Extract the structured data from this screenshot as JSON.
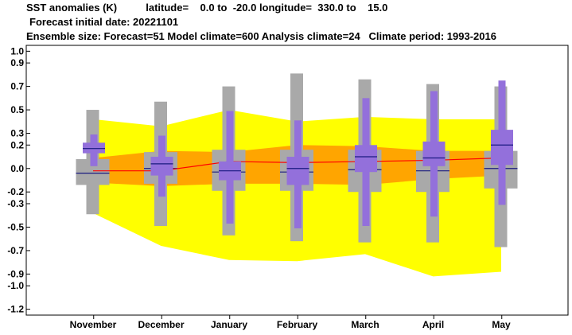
{
  "header": {
    "line1": "SST anomalies (K)          latitude=    0.0 to  -20.0 longitude=  330.0 to    15.0",
    "line2": "Forecast initial date: 20221101",
    "line3": "Ensemble size: Forecast=51 Model climate=600 Analysis climate=24   Climate period: 1993-2016"
  },
  "chart_data": {
    "type": "box",
    "title": "SST anomalies (K)",
    "categories": [
      "November",
      "December",
      "January",
      "February",
      "March",
      "April",
      "May"
    ],
    "yticks": [
      "1.0",
      "0.9",
      "0.7",
      "0.5",
      "0.3",
      "0.2",
      "0.0",
      "-0.2",
      "-0.3",
      "-0.5",
      "-0.7",
      "-0.9",
      "-1.0",
      "-1.2"
    ],
    "climate_yellow_upper": [
      0.42,
      0.36,
      0.5,
      0.4,
      0.44,
      0.42,
      0.42
    ],
    "climate_yellow_lower": [
      -0.38,
      -0.66,
      -0.78,
      -0.79,
      -0.73,
      -0.92,
      -0.88
    ],
    "climate_orange_upper": [
      0.09,
      0.15,
      0.14,
      0.2,
      0.19,
      0.15,
      0.15
    ],
    "climate_orange_lower": [
      -0.12,
      -0.15,
      -0.13,
      -0.13,
      -0.14,
      -0.09,
      -0.06
    ],
    "model_climate": [
      {
        "whisker_low": -0.39,
        "whisker_high": 0.5,
        "box_low": -0.14,
        "box_high": 0.08,
        "median": -0.04
      },
      {
        "whisker_low": -0.49,
        "whisker_high": 0.57,
        "box_low": -0.13,
        "box_high": 0.14,
        "median": 0.0
      },
      {
        "whisker_low": -0.57,
        "whisker_high": 0.7,
        "box_low": -0.19,
        "box_high": 0.16,
        "median": -0.03
      },
      {
        "whisker_low": -0.62,
        "whisker_high": 0.81,
        "box_low": -0.19,
        "box_high": 0.16,
        "median": -0.03
      },
      {
        "whisker_low": -0.63,
        "whisker_high": 0.76,
        "box_low": -0.2,
        "box_high": 0.16,
        "median": -0.01
      },
      {
        "whisker_low": -0.63,
        "whisker_high": 0.72,
        "box_low": -0.2,
        "box_high": 0.15,
        "median": -0.02
      },
      {
        "whisker_low": -0.67,
        "whisker_high": 0.7,
        "box_low": -0.17,
        "box_high": 0.15,
        "median": 0.0
      }
    ],
    "forecast": [
      {
        "whisker_low": 0.02,
        "whisker_high": 0.29,
        "box_low": 0.13,
        "box_high": 0.22,
        "median": 0.17
      },
      {
        "whisker_low": -0.24,
        "whisker_high": 0.28,
        "box_low": -0.06,
        "box_high": 0.1,
        "median": 0.04
      },
      {
        "whisker_low": -0.47,
        "whisker_high": 0.49,
        "box_low": -0.1,
        "box_high": 0.06,
        "median": -0.02
      },
      {
        "whisker_low": -0.51,
        "whisker_high": 0.41,
        "box_low": -0.14,
        "box_high": 0.1,
        "median": 0.0
      },
      {
        "whisker_low": -0.49,
        "whisker_high": 0.6,
        "box_low": -0.03,
        "box_high": 0.2,
        "median": 0.1
      },
      {
        "whisker_low": -0.41,
        "whisker_high": 0.66,
        "box_low": 0.02,
        "box_high": 0.23,
        "median": 0.09
      },
      {
        "whisker_low": -0.31,
        "whisker_high": 0.75,
        "box_low": 0.03,
        "box_high": 0.33,
        "median": 0.2
      }
    ],
    "analysis_line": [
      -0.02,
      -0.02,
      0.06,
      0.05,
      0.06,
      0.07,
      0.09
    ],
    "ylim": [
      -1.25,
      1.05
    ],
    "grid": false,
    "colors": {
      "yellow": "#ffff00",
      "orange": "#ffa500",
      "grey": "#a9a9a9",
      "purple": "#9370db",
      "analysis": "#ff0000",
      "median": "#1a1a80"
    }
  }
}
